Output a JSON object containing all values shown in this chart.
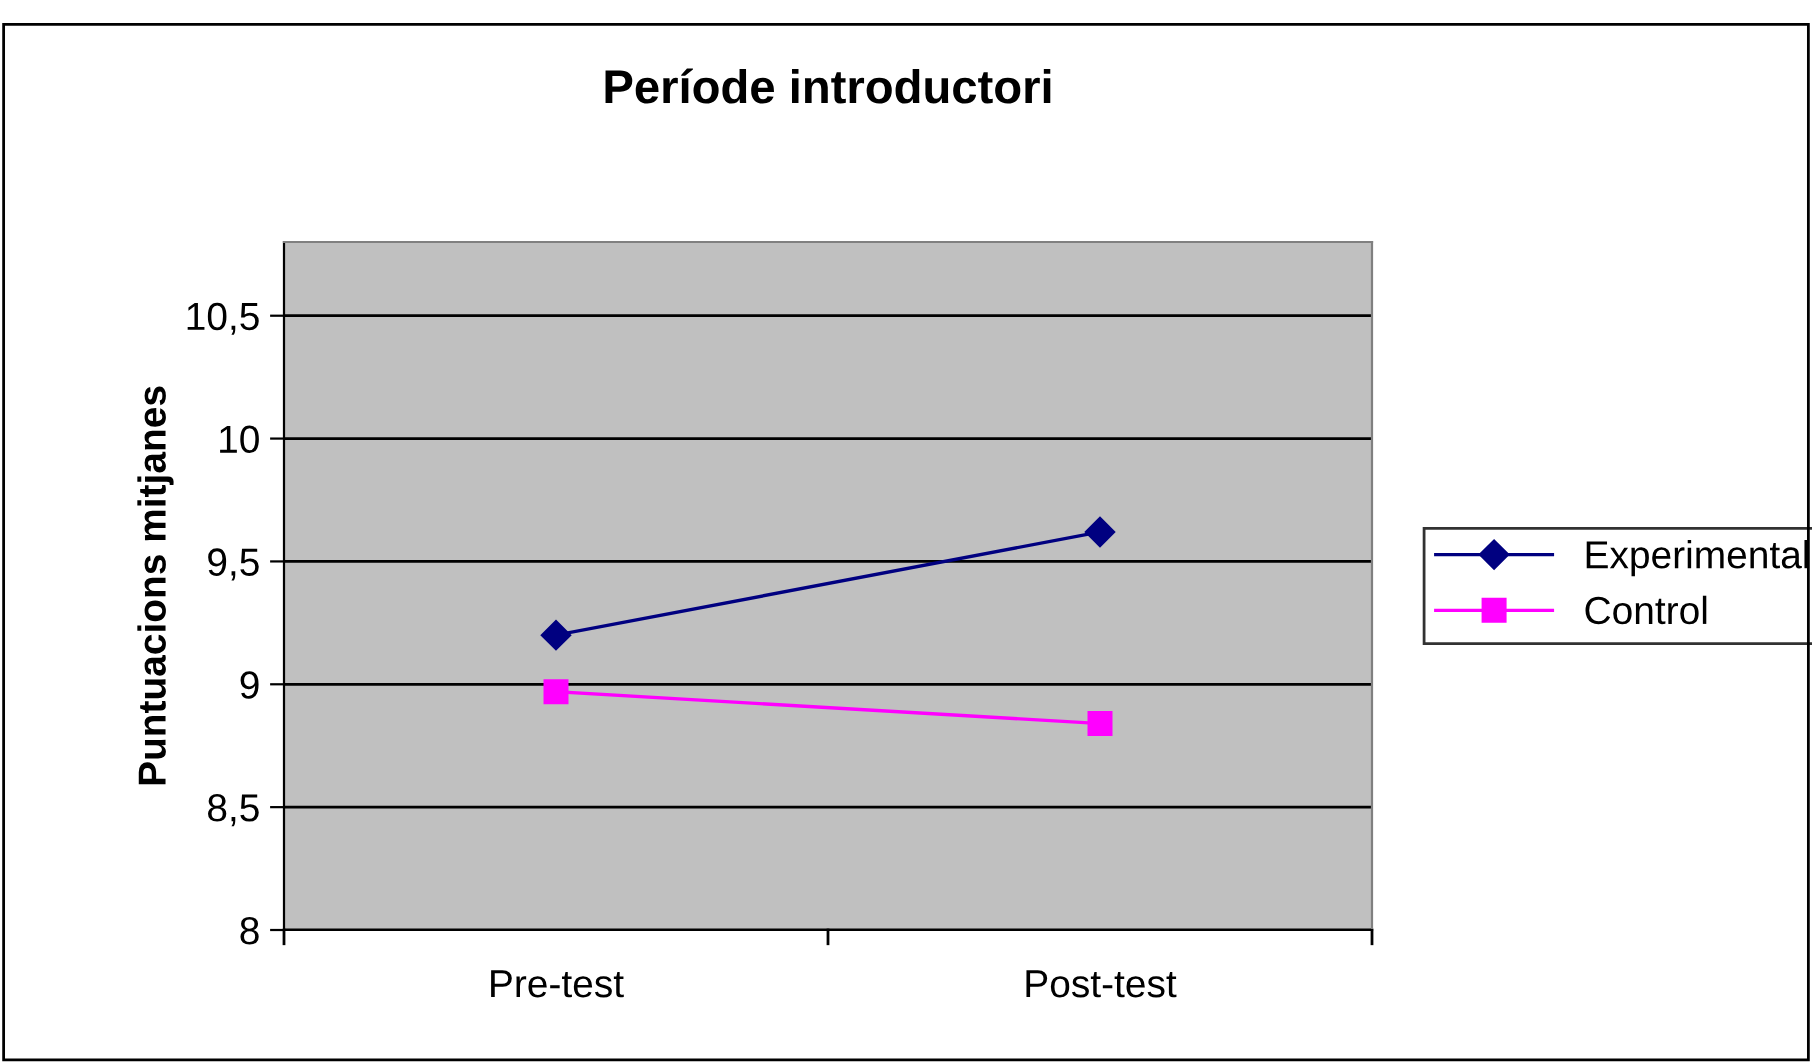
{
  "chart_data": {
    "type": "line",
    "title": "Període introductori",
    "ylabel": "Puntuacions mitjanes",
    "categories": [
      "Pre-test",
      "Post-test"
    ],
    "series": [
      {
        "name": "Experimental",
        "color": "#000080",
        "values": [
          9.2,
          9.62
        ],
        "marker": "diamond"
      },
      {
        "name": "Control",
        "color": "#ff00ff",
        "values": [
          8.97,
          8.84
        ],
        "marker": "square"
      }
    ],
    "ylim": [
      8,
      10.8
    ],
    "yticks": [
      8,
      {
        "value": 8.5,
        "label": "8,5"
      },
      9,
      {
        "value": 9.5,
        "label": "9,5"
      },
      10,
      {
        "value": 10.5,
        "label": "10,5"
      }
    ],
    "grid": "y",
    "legend": "right",
    "line_style": "solid"
  }
}
